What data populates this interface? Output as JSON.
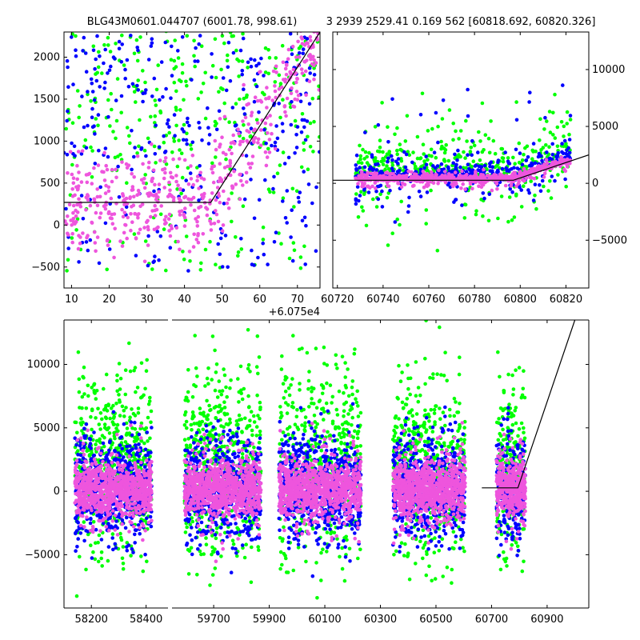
{
  "titles": {
    "left": "BLG43M0601.044707 (6001.78, 998.61)",
    "right": "3 2939 2529.41 0.169 562 [60818.692, 60820.326]"
  },
  "colors": {
    "green": "#00ff00",
    "blue": "#0000ff",
    "pink": "#ee55dd",
    "line": "#000000"
  },
  "chart_data": [
    {
      "id": "top-left",
      "type": "scatter",
      "title": "BLG43M0601.044707 (6001.78, 998.61)",
      "xlim": [
        8,
        76
      ],
      "ylim": [
        -750,
        2300
      ],
      "x_ticks": [
        10,
        20,
        30,
        40,
        50,
        60,
        70
      ],
      "x_tick_labels": [
        "10",
        "20",
        "30",
        "40",
        "50",
        "60",
        "70"
      ],
      "y_ticks": [
        -500,
        0,
        500,
        1000,
        1500,
        2000
      ],
      "y_tick_labels": [
        "−500",
        "0",
        "500",
        "1000",
        "1500",
        "2000"
      ],
      "x_offset_label": "+6.075e4",
      "series_ranges": {
        "pink": [
          -600,
          1900
        ],
        "blue": [
          -400,
          2300
        ],
        "green": [
          -700,
          2300
        ]
      },
      "model": [
        [
          8,
          270
        ],
        [
          47,
          270
        ],
        [
          76,
          2300
        ]
      ]
    },
    {
      "id": "top-right",
      "type": "scatter",
      "title": "3 2939 2529.41 0.169 562 [60818.692, 60820.326]",
      "xlim": [
        60718,
        60830
      ],
      "ylim": [
        -9200,
        13300
      ],
      "x_ticks": [
        60720,
        60740,
        60760,
        60780,
        60800,
        60820
      ],
      "x_tick_labels": [
        "60720",
        "60740",
        "60760",
        "60780",
        "60800",
        "60820"
      ],
      "y_ticks": [
        -5000,
        0,
        5000,
        10000
      ],
      "y_tick_labels": [
        "−5000",
        "0",
        "5000",
        "10000"
      ],
      "model": [
        [
          60718,
          270
        ],
        [
          60797,
          270
        ],
        [
          60830,
          2500
        ]
      ]
    },
    {
      "id": "bottom",
      "type": "scatter",
      "xlim": [
        58100,
        61050
      ],
      "ylim": [
        -9200,
        13500
      ],
      "x_ticks": [
        58200,
        58400,
        59700,
        59900,
        60100,
        60300,
        60500,
        60700,
        60900
      ],
      "x_tick_labels": [
        "58200",
        "58400",
        "59700",
        "59900",
        "60100",
        "60300",
        "60500",
        "60700",
        "60900"
      ],
      "y_ticks": [
        -5000,
        0,
        5000,
        10000
      ],
      "y_tick_labels": [
        "−5000",
        "0",
        "5000",
        "10000"
      ],
      "break": {
        "left_range": [
          58100,
          58480
        ],
        "right_range": [
          59550,
          61050
        ]
      },
      "seasons": [
        {
          "x": [
            58140,
            58420
          ],
          "xb": [
            58140,
            58420
          ]
        },
        {
          "x": [
            59595,
            59870
          ]
        },
        {
          "x": [
            59935,
            60230
          ]
        },
        {
          "x": [
            60345,
            60605
          ]
        },
        {
          "x": [
            60718,
            60822
          ]
        }
      ],
      "model": [
        [
          60665,
          270
        ],
        [
          60795,
          270
        ],
        [
          61000,
          13500
        ]
      ]
    }
  ]
}
